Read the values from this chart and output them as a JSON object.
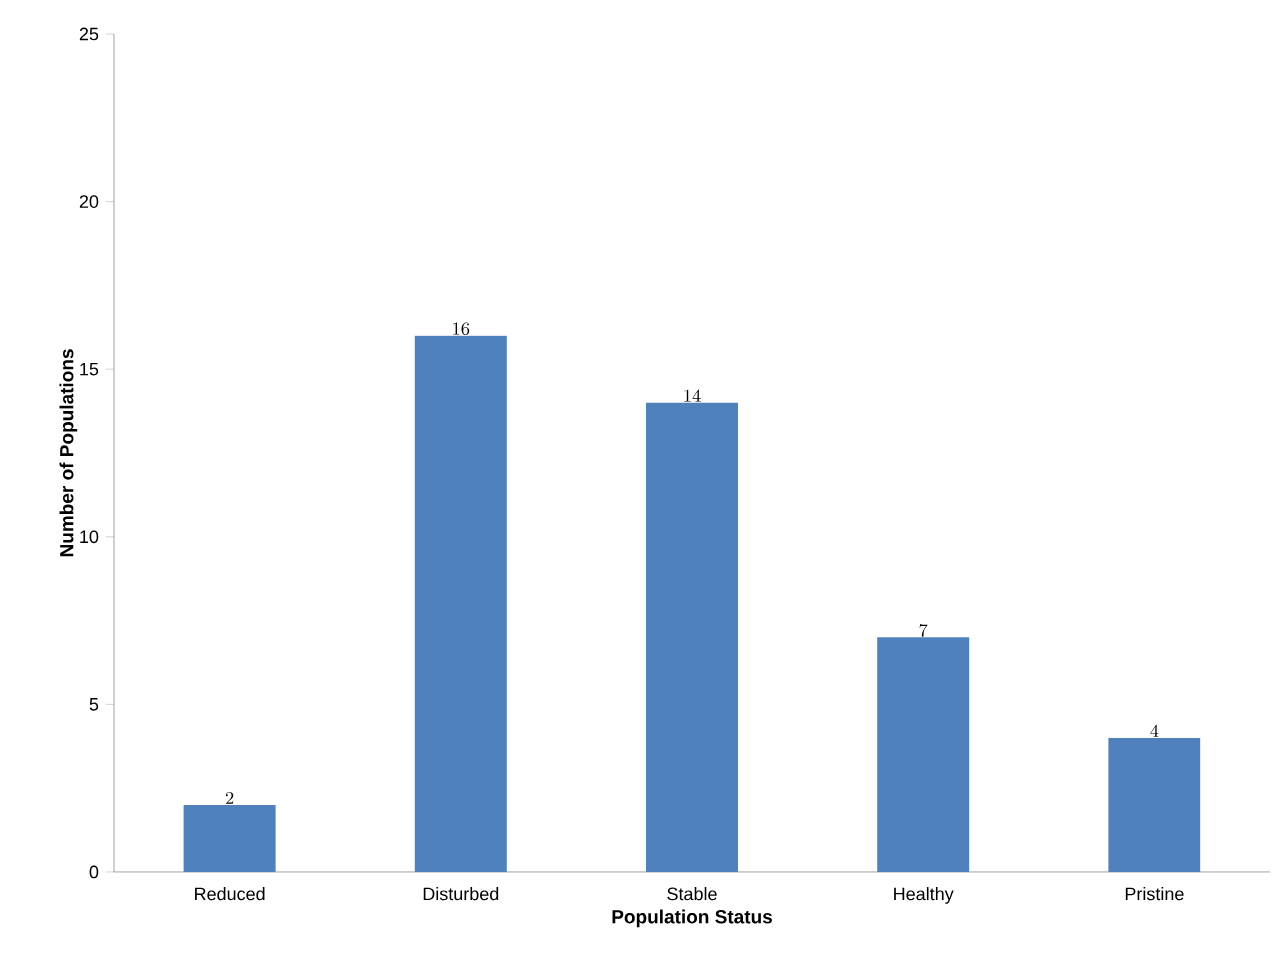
{
  "chart_data": {
    "type": "bar",
    "xlabel": "Population Status",
    "ylabel": "Number of Populations",
    "categories": [
      "Reduced",
      "Disturbed",
      "Stable",
      "Healthy",
      "Pristine"
    ],
    "values": [
      2,
      16,
      14,
      7,
      4
    ],
    "color": "#4f81bd",
    "ylim": [
      0,
      25
    ],
    "yticks": [
      0,
      5,
      10,
      15,
      20,
      25
    ],
    "data_labels": true
  }
}
